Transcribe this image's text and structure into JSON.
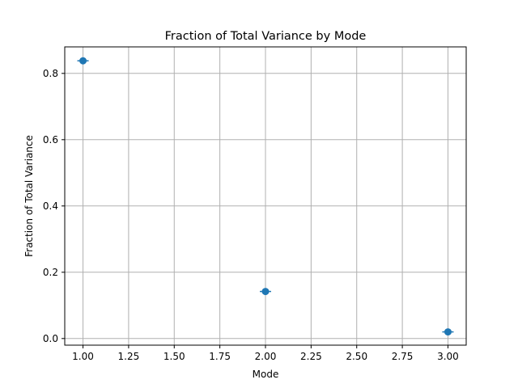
{
  "chart_data": {
    "type": "scatter",
    "title": "Fraction of Total Variance by Mode",
    "xlabel": "Mode",
    "ylabel": "Fraction of Total Variance",
    "xlim": [
      0.9,
      3.1
    ],
    "ylim": [
      -0.02,
      0.88
    ],
    "xticks": [
      1.0,
      1.25,
      1.5,
      1.75,
      2.0,
      2.25,
      2.5,
      2.75,
      3.0
    ],
    "xtick_labels": [
      "1.00",
      "1.25",
      "1.50",
      "1.75",
      "2.00",
      "2.25",
      "2.50",
      "2.75",
      "3.00"
    ],
    "yticks": [
      0.0,
      0.2,
      0.4,
      0.6,
      0.8
    ],
    "ytick_labels": [
      "0.0",
      "0.2",
      "0.4",
      "0.6",
      "0.8"
    ],
    "grid": true,
    "series": [
      {
        "x": [
          1,
          2,
          3
        ],
        "y": [
          0.838,
          0.142,
          0.02
        ],
        "marker": "circle",
        "error_bars": "horizontal",
        "color": "#1f77b4"
      }
    ]
  }
}
